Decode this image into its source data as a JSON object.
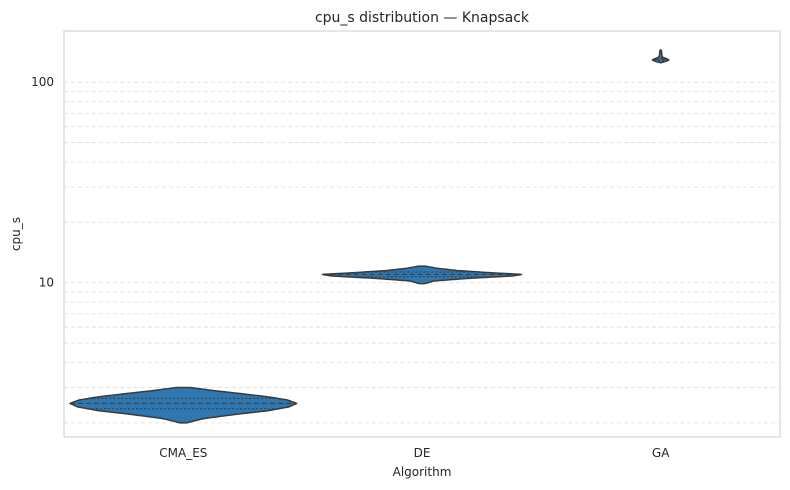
{
  "chart_data": {
    "type": "violin",
    "title": "cpu_s distribution — Knapsack",
    "xlabel": "Algorithm",
    "ylabel": "cpu_s",
    "yscale": "log",
    "ylim": [
      1.7,
      180
    ],
    "yticks": [
      {
        "value": 10,
        "label": "10"
      },
      {
        "value": 100,
        "label": "100"
      }
    ],
    "grid": "y-major-and-minor-dashed",
    "color": "#2e77b0",
    "edge_color": "#3a3a3a",
    "categories": [
      "CMA_ES",
      "DE",
      "GA"
    ],
    "violins": [
      {
        "category": "CMA_ES",
        "min": 2.0,
        "max": 3.0,
        "quartiles": [
          2.35,
          2.5,
          2.65
        ],
        "half_width": 0.95,
        "profile": [
          [
            2.0,
            0.03
          ],
          [
            2.1,
            0.18
          ],
          [
            2.2,
            0.45
          ],
          [
            2.3,
            0.75
          ],
          [
            2.4,
            0.93
          ],
          [
            2.5,
            1.0
          ],
          [
            2.6,
            0.92
          ],
          [
            2.7,
            0.74
          ],
          [
            2.8,
            0.5
          ],
          [
            2.9,
            0.26
          ],
          [
            3.0,
            0.06
          ]
        ]
      },
      {
        "category": "DE",
        "min": 9.9,
        "max": 12.1,
        "quartiles": [
          10.7,
          11.0,
          11.3
        ],
        "half_width": 0.84,
        "profile": [
          [
            9.9,
            0.03
          ],
          [
            10.2,
            0.12
          ],
          [
            10.5,
            0.45
          ],
          [
            10.8,
            0.9
          ],
          [
            11.0,
            1.0
          ],
          [
            11.2,
            0.7
          ],
          [
            11.5,
            0.35
          ],
          [
            11.8,
            0.15
          ],
          [
            12.1,
            0.03
          ]
        ]
      },
      {
        "category": "GA",
        "min": 125,
        "max": 145,
        "quartiles": [
          128,
          130,
          132
        ],
        "half_width": 0.07,
        "profile": [
          [
            125,
            0.05
          ],
          [
            127,
            0.6
          ],
          [
            129,
            1.0
          ],
          [
            131,
            0.7
          ],
          [
            133,
            0.25
          ],
          [
            136,
            0.15
          ],
          [
            140,
            0.12
          ],
          [
            143,
            0.1
          ],
          [
            145,
            0.03
          ]
        ]
      }
    ]
  }
}
